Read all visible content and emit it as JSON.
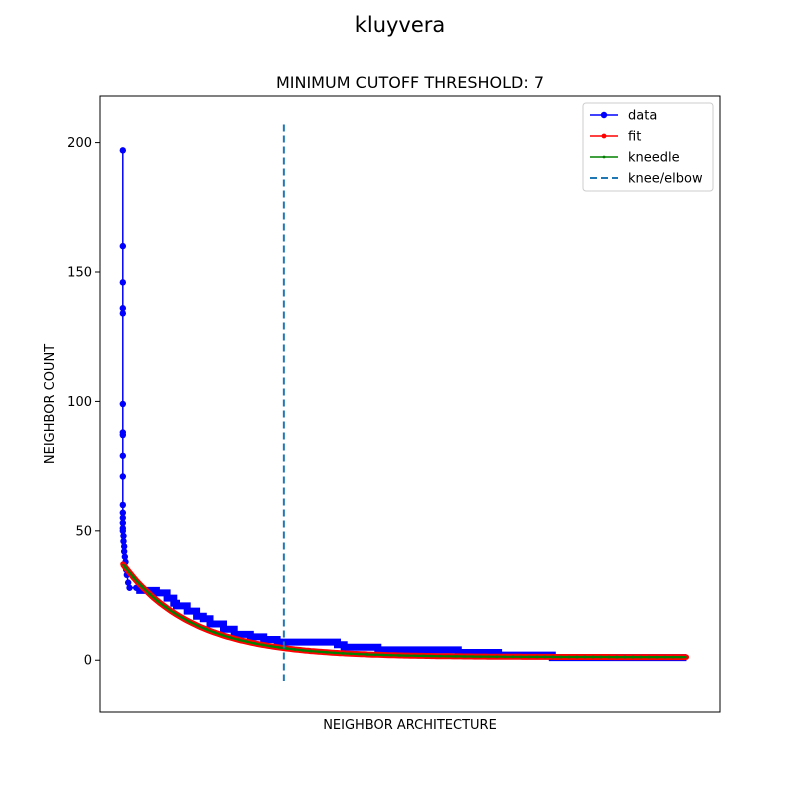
{
  "chart_data": {
    "type": "line",
    "suptitle": "kluyvera",
    "title": "MINIMUM CUTOFF THRESHOLD: 7",
    "xlabel": "NEIGHBOR ARCHITECTURE",
    "ylabel": "NEIGHBOR COUNT",
    "xlim": [
      -17,
      445
    ],
    "ylim": [
      -20,
      218
    ],
    "yticks": [
      0,
      50,
      100,
      150,
      200
    ],
    "xticks": [],
    "grid": false,
    "legend_position": "upper right",
    "knee": {
      "label": "knee/elbow",
      "x": 120,
      "ymin": -8,
      "ymax": 207,
      "color": "#1f77b4"
    },
    "series": [
      {
        "name": "data",
        "color": "#0000ff",
        "marker": "circle",
        "head_points": [
          [
            0,
            197
          ],
          [
            0,
            160
          ],
          [
            0,
            146
          ],
          [
            0,
            136
          ],
          [
            0,
            134
          ],
          [
            0,
            99
          ],
          [
            0,
            88
          ],
          [
            0,
            87
          ],
          [
            0,
            79
          ],
          [
            0,
            71
          ],
          [
            0,
            60
          ],
          [
            0,
            57
          ],
          [
            0,
            55
          ],
          [
            0,
            53
          ],
          [
            0,
            51
          ],
          [
            0,
            50
          ],
          [
            0.5,
            48
          ],
          [
            0.5,
            46
          ],
          [
            1,
            44
          ],
          [
            1,
            42
          ],
          [
            1.5,
            40
          ],
          [
            2,
            38
          ],
          [
            2.5,
            35
          ],
          [
            3,
            33
          ],
          [
            4,
            30
          ],
          [
            5,
            28
          ],
          [
            10,
            28
          ]
        ],
        "steps": [
          [
            10,
            27
          ],
          [
            25,
            26
          ],
          [
            33,
            24
          ],
          [
            38,
            22
          ],
          [
            40,
            21
          ],
          [
            48,
            19
          ],
          [
            55,
            17
          ],
          [
            60,
            16
          ],
          [
            65,
            14
          ],
          [
            75,
            12
          ],
          [
            83,
            10
          ],
          [
            95,
            9
          ],
          [
            105,
            8
          ],
          [
            115,
            7
          ],
          [
            125,
            7
          ],
          [
            160,
            6
          ],
          [
            165,
            5
          ],
          [
            185,
            5
          ],
          [
            190,
            4
          ],
          [
            245,
            4
          ],
          [
            250,
            3
          ],
          [
            275,
            3
          ],
          [
            280,
            2
          ],
          [
            315,
            2
          ],
          [
            320,
            1
          ],
          [
            420,
            1
          ]
        ]
      },
      {
        "name": "fit",
        "color": "#ff0000",
        "marker": "dot",
        "curve": {
          "a": 36,
          "c": 1.2,
          "b": 0.0195,
          "x0": 0,
          "x1": 420
        }
      },
      {
        "name": "kneedle",
        "color": "#008000",
        "marker": "dot",
        "curve": {
          "a": 36,
          "c": 1.2,
          "b": 0.0195,
          "x0": 0,
          "x1": 420
        }
      }
    ]
  }
}
